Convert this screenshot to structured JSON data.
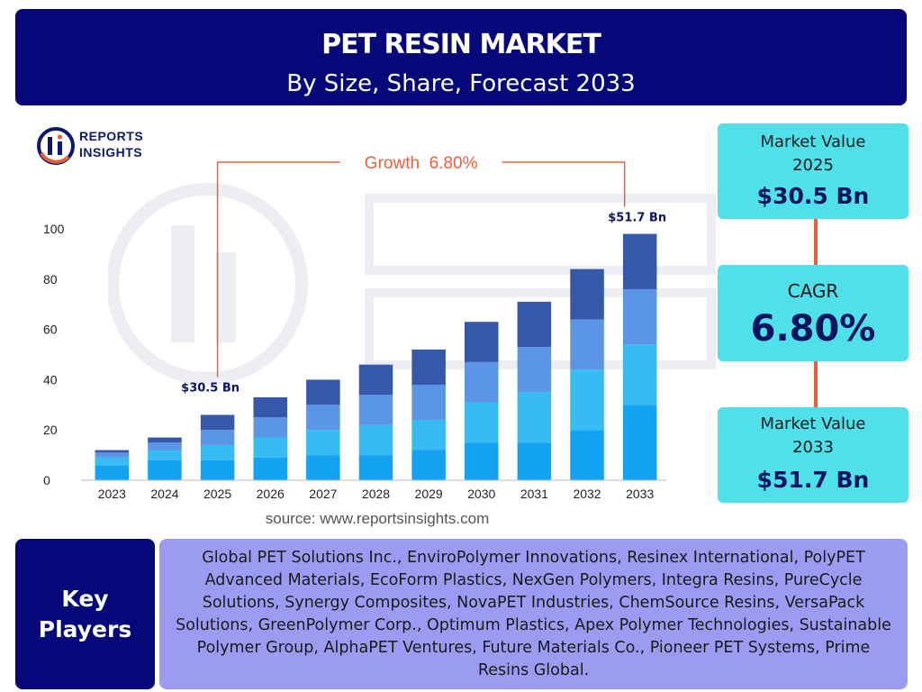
{
  "header": {
    "title": "PET RESIN MARKET",
    "subtitle": "By Size, Share, Forecast 2033"
  },
  "logo": {
    "line1": "REPORTS",
    "line2": "INSIGHTS"
  },
  "chart_data": {
    "type": "bar",
    "stacked": true,
    "categories": [
      "2023",
      "2024",
      "2025",
      "2026",
      "2027",
      "2028",
      "2029",
      "2030",
      "2031",
      "2032",
      "2033"
    ],
    "series": [
      {
        "values": [
          6,
          8,
          8,
          9,
          10,
          10,
          12,
          15,
          15,
          20,
          30
        ]
      },
      {
        "values": [
          3,
          4,
          6,
          8,
          10,
          12,
          12,
          16,
          20,
          24,
          24
        ]
      },
      {
        "values": [
          2,
          3,
          6,
          8,
          10,
          12,
          14,
          16,
          18,
          20,
          22
        ]
      },
      {
        "values": [
          1,
          2,
          6,
          8,
          10,
          12,
          14,
          16,
          18,
          20,
          22
        ]
      }
    ],
    "yticks": [
      0,
      20,
      40,
      60,
      80,
      100
    ],
    "ylim": [
      0,
      100
    ],
    "grid": false,
    "colors": [
      "#14a2f3",
      "#36bbf2",
      "#5b95e8",
      "#3558ab"
    ],
    "annotations": {
      "start_label": "$30.5 Bn",
      "end_label": "$51.7 Bn",
      "growth_label": "Growth  6.80%"
    },
    "accent_color": "#e8603c"
  },
  "source": "source: www.reportsinsights.com",
  "stats": {
    "market_value_2025": {
      "label1": "Market Value",
      "label2": "2025",
      "value": "$30.5 Bn"
    },
    "cagr": {
      "label": "CAGR",
      "value": "6.80%"
    },
    "market_value_2033": {
      "label1": "Market Value",
      "label2": "2033",
      "value": "$51.7 Bn"
    }
  },
  "key_players": {
    "label_line1": "Key",
    "label_line2": "Players",
    "text": "Global PET Solutions Inc., EnviroPolymer Innovations, Resinex International, PolyPET Advanced Materials, EcoForm Plastics, NexGen Polymers, Integra Resins, PureCycle Solutions, Synergy Composites, NovaPET Industries, ChemSource Resins, VersaPack Solutions, GreenPolymer Corp., Optimum Plastics, Apex Polymer Technologies, Sustainable Polymer Group, AlphaPET Ventures, Future Materials Co., Pioneer PET Systems, Prime Resins Global."
  }
}
